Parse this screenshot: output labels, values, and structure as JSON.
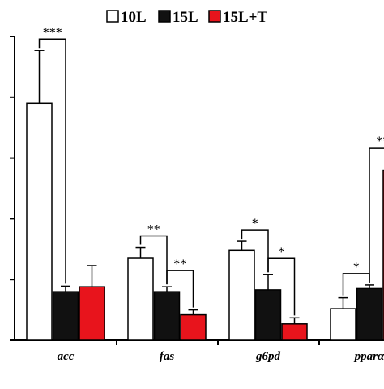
{
  "chart_data": {
    "type": "bar",
    "categories": [
      "acc",
      "fas",
      "g6pd",
      "pparα"
    ],
    "series": [
      {
        "name": "10L",
        "color": "#ffffff",
        "values": [
          3.9,
          1.35,
          1.48,
          0.52
        ],
        "errors": [
          0.87,
          0.18,
          0.15,
          0.18
        ]
      },
      {
        "name": "15L",
        "color": "#111111",
        "values": [
          0.8,
          0.8,
          0.83,
          0.85
        ],
        "errors": [
          0.09,
          0.08,
          0.25,
          0.06
        ]
      },
      {
        "name": "15L+T",
        "color": "#e8141c",
        "values": [
          0.88,
          0.42,
          0.27,
          2.8
        ],
        "errors": [
          0.35,
          0.08,
          0.1,
          0.1
        ]
      }
    ],
    "ylim": [
      0,
      5
    ],
    "yticks": [
      0,
      1,
      2,
      3,
      4,
      5
    ],
    "significance": [
      {
        "category": 0,
        "from": 0,
        "to": 1,
        "label": "***"
      },
      {
        "category": 1,
        "from": 0,
        "to": 1,
        "label": "**"
      },
      {
        "category": 1,
        "from": 1,
        "to": 2,
        "label": "**"
      },
      {
        "category": 2,
        "from": 0,
        "to": 1,
        "label": "*"
      },
      {
        "category": 2,
        "from": 1,
        "to": 2,
        "label": "*"
      },
      {
        "category": 3,
        "from": 0,
        "to": 1,
        "label": "*"
      },
      {
        "category": 3,
        "from": 1,
        "to": 2,
        "label": "**"
      }
    ],
    "legend_position": "top",
    "grid": false
  }
}
